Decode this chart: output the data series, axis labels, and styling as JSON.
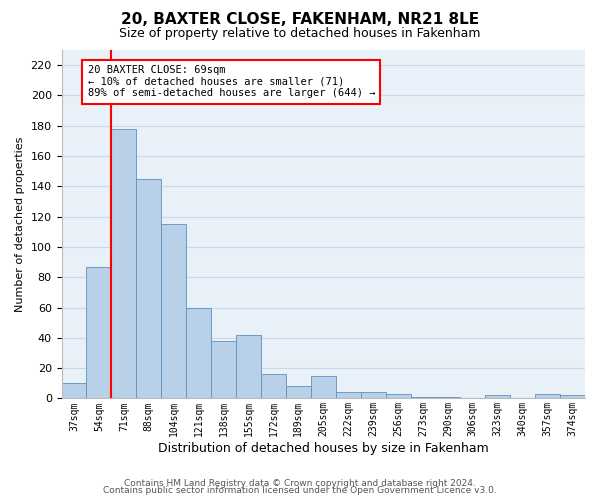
{
  "title": "20, BAXTER CLOSE, FAKENHAM, NR21 8LE",
  "subtitle": "Size of property relative to detached houses in Fakenham",
  "xlabel": "Distribution of detached houses by size in Fakenham",
  "ylabel": "Number of detached properties",
  "categories": [
    "37sqm",
    "54sqm",
    "71sqm",
    "88sqm",
    "104sqm",
    "121sqm",
    "138sqm",
    "155sqm",
    "172sqm",
    "189sqm",
    "205sqm",
    "222sqm",
    "239sqm",
    "256sqm",
    "273sqm",
    "290sqm",
    "306sqm",
    "323sqm",
    "340sqm",
    "357sqm",
    "374sqm"
  ],
  "values": [
    10,
    87,
    178,
    145,
    115,
    60,
    38,
    42,
    16,
    8,
    15,
    4,
    4,
    3,
    1,
    1,
    0,
    2,
    0,
    3,
    2
  ],
  "bar_color": "#b8d0e8",
  "bar_edge_color": "#6090c0",
  "grid_color": "#c8d8ea",
  "background_color": "#e8f0f8",
  "ylim": [
    0,
    230
  ],
  "yticks": [
    0,
    20,
    40,
    60,
    80,
    100,
    120,
    140,
    160,
    180,
    200,
    220
  ],
  "property_line_x": 1.5,
  "property_label": "20 BAXTER CLOSE: 69sqm",
  "annotation_line1": "← 10% of detached houses are smaller (71)",
  "annotation_line2": "89% of semi-detached houses are larger (644) →",
  "footnote1": "Contains HM Land Registry data © Crown copyright and database right 2024.",
  "footnote2": "Contains public sector information licensed under the Open Government Licence v3.0."
}
